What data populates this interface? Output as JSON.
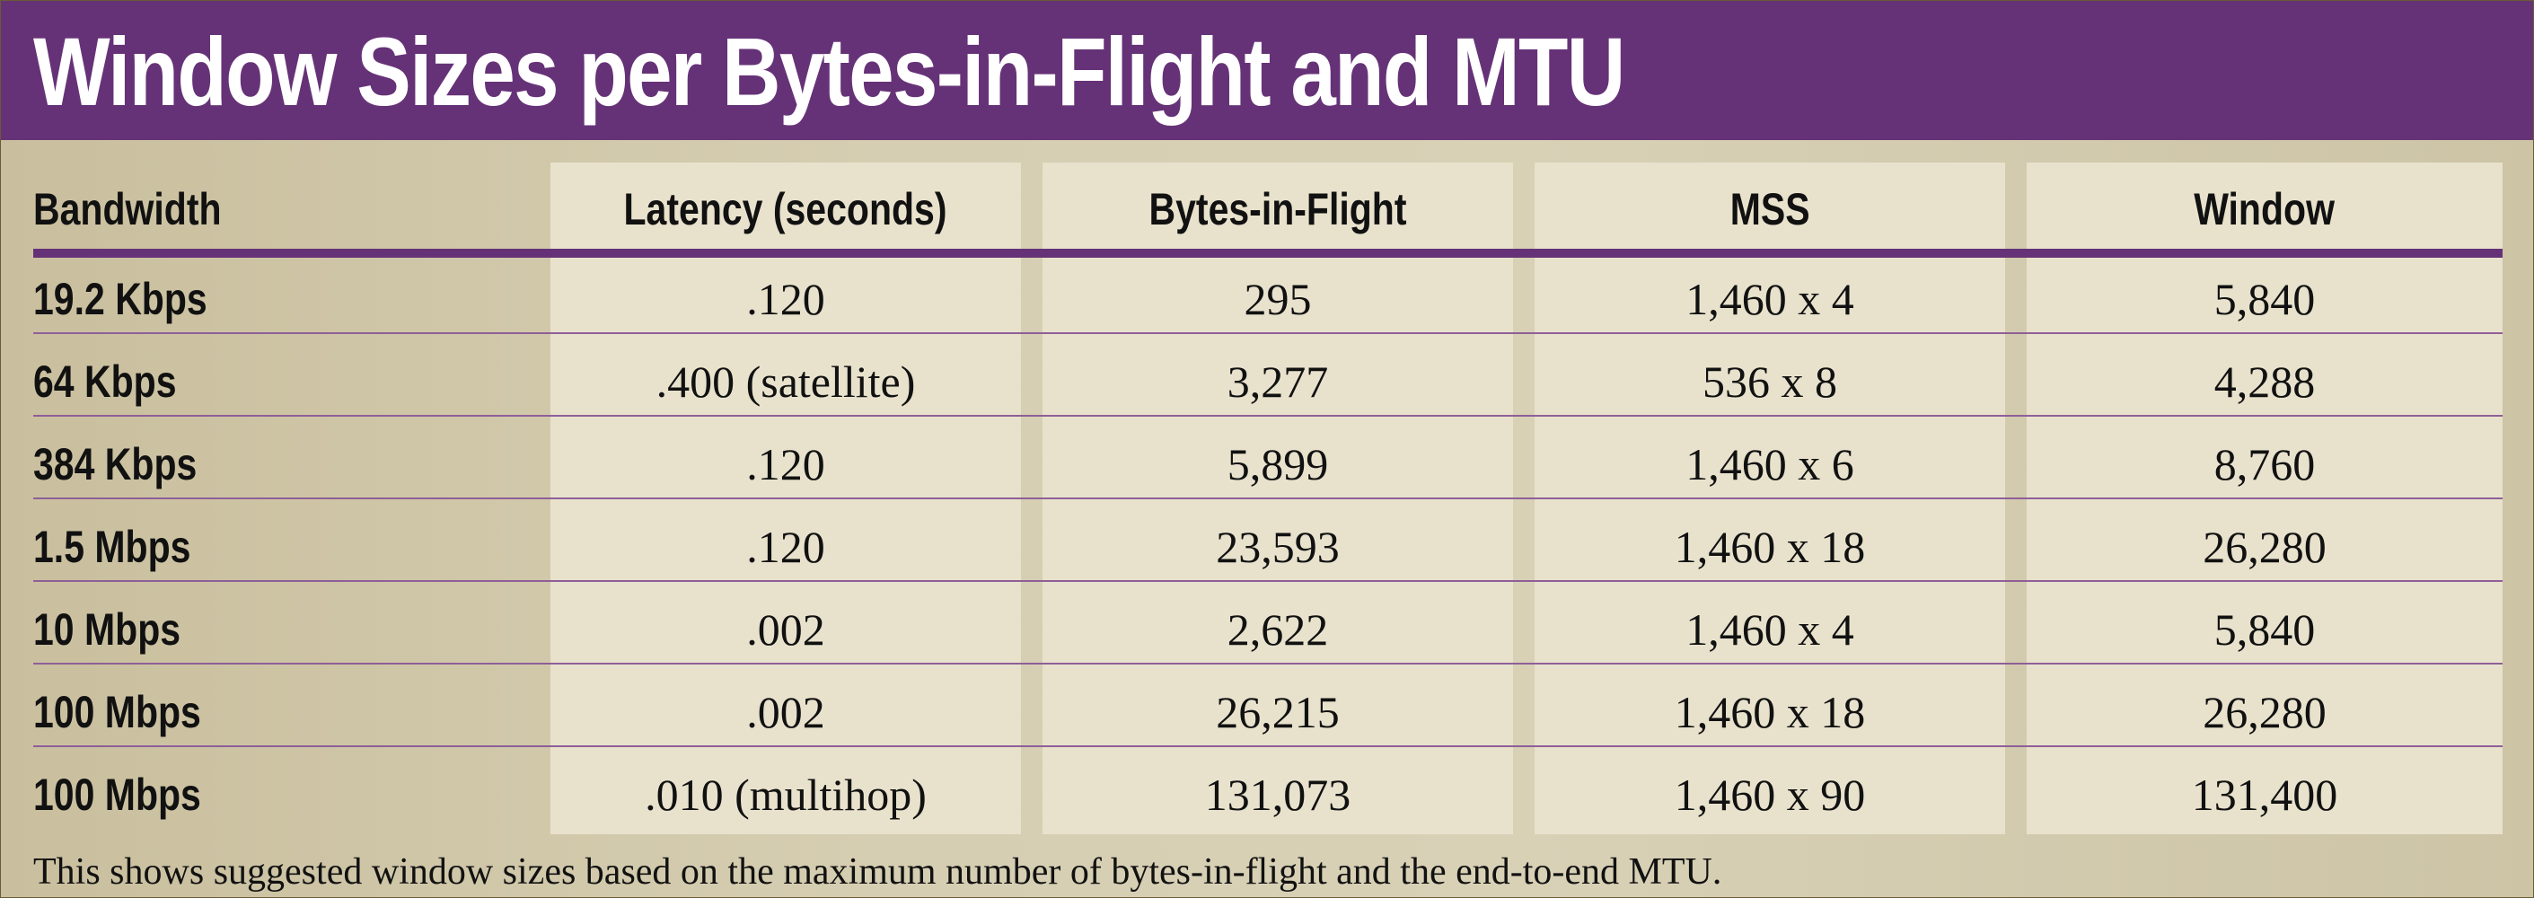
{
  "title": "Window Sizes per Bytes-in-Flight and MTU",
  "table": {
    "columns": [
      "Bandwidth",
      "Latency (seconds)",
      "Bytes-in-Flight",
      "MSS",
      "Window"
    ],
    "rows": [
      [
        "19.2 Kbps",
        ".120",
        "295",
        "1,460 x 4",
        "5,840"
      ],
      [
        "64 Kbps",
        ".400 (satellite)",
        "3,277",
        "536 x 8",
        "4,288"
      ],
      [
        "384 Kbps",
        ".120",
        "5,899",
        "1,460 x 6",
        "8,760"
      ],
      [
        "1.5 Mbps",
        ".120",
        "23,593",
        "1,460 x 18",
        "26,280"
      ],
      [
        "10 Mbps",
        ".002",
        "2,622",
        "1,460 x 4",
        "5,840"
      ],
      [
        "100 Mbps",
        ".002",
        "26,215",
        "1,460 x 18",
        "26,280"
      ],
      [
        "100 Mbps",
        ".010 (multihop)",
        "131,073",
        "1,460 x 90",
        "131,400"
      ]
    ]
  },
  "caption": "This shows suggested window sizes based on the maximum number of bytes-in-flight and the end-to-end MTU."
}
